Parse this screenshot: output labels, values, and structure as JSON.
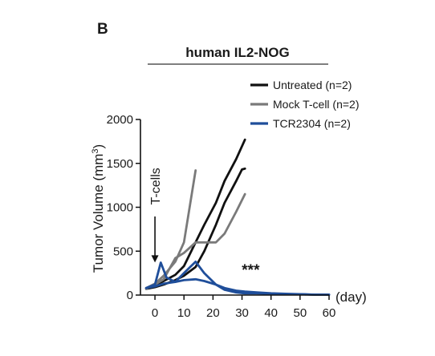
{
  "panel_letter": "B",
  "chart_data": {
    "type": "line",
    "title": "human IL2-NOG",
    "xlabel": "",
    "x_unit": "(day)",
    "ylabel": "Tumor Volume (mm³)",
    "xlim": [
      -5,
      60
    ],
    "ylim": [
      0,
      2000
    ],
    "xticks": [
      0,
      10,
      20,
      30,
      40,
      50,
      60
    ],
    "yticks": [
      0,
      500,
      1000,
      1500,
      2000
    ],
    "grid": false,
    "legend_position": "top-right",
    "legend": [
      {
        "label": "Untreated (n=2)",
        "color": "#111111"
      },
      {
        "label": "Mock T-cell (n=2)",
        "color": "#7a7a7a"
      },
      {
        "label": "TCR2304 (n=2)",
        "color": "#1f4e9a"
      }
    ],
    "annotations": [
      {
        "text": "T-cells",
        "x": 0,
        "y": 1450,
        "arrow_to_y": 380
      },
      {
        "text": "***",
        "x": 33,
        "y": 230
      }
    ],
    "series": [
      {
        "group": "Untreated (n=2)",
        "color": "#111111",
        "x": [
          -3,
          0,
          3,
          7,
          10,
          14,
          17,
          21,
          24,
          28,
          31
        ],
        "y": [
          80,
          110,
          160,
          230,
          330,
          600,
          800,
          1050,
          1300,
          1550,
          1770
        ]
      },
      {
        "group": "Untreated (n=2)",
        "color": "#111111",
        "x": [
          -3,
          0,
          3,
          7,
          10,
          14,
          17,
          21,
          24,
          28,
          30,
          31
        ],
        "y": [
          70,
          90,
          120,
          170,
          220,
          320,
          500,
          800,
          1050,
          1300,
          1430,
          1440
        ]
      },
      {
        "group": "Mock T-cell (n=2)",
        "color": "#7a7a7a",
        "x": [
          -3,
          0,
          3,
          7,
          10,
          14
        ],
        "y": [
          80,
          130,
          220,
          380,
          600,
          1420
        ]
      },
      {
        "group": "Mock T-cell (n=2)",
        "color": "#7a7a7a",
        "x": [
          -3,
          0,
          3,
          7,
          10,
          14,
          17,
          21,
          24,
          28,
          31
        ],
        "y": [
          70,
          120,
          180,
          420,
          480,
          600,
          600,
          600,
          700,
          950,
          1150
        ]
      },
      {
        "group": "TCR2304 (n=2)",
        "color": "#1f4e9a",
        "x": [
          -3,
          0,
          2,
          4,
          7,
          10,
          14,
          17,
          21,
          24,
          28,
          31,
          35,
          40,
          45,
          50,
          55,
          60
        ],
        "y": [
          80,
          120,
          370,
          200,
          150,
          250,
          380,
          250,
          120,
          60,
          30,
          20,
          20,
          15,
          10,
          10,
          5,
          5
        ]
      },
      {
        "group": "TCR2304 (n=2)",
        "color": "#1f4e9a",
        "x": [
          -3,
          0,
          3,
          7,
          10,
          14,
          17,
          21,
          24,
          28,
          31,
          35,
          40,
          45,
          50,
          55,
          60
        ],
        "y": [
          80,
          100,
          130,
          150,
          170,
          180,
          160,
          120,
          80,
          50,
          40,
          30,
          20,
          15,
          10,
          5,
          5
        ]
      }
    ]
  }
}
